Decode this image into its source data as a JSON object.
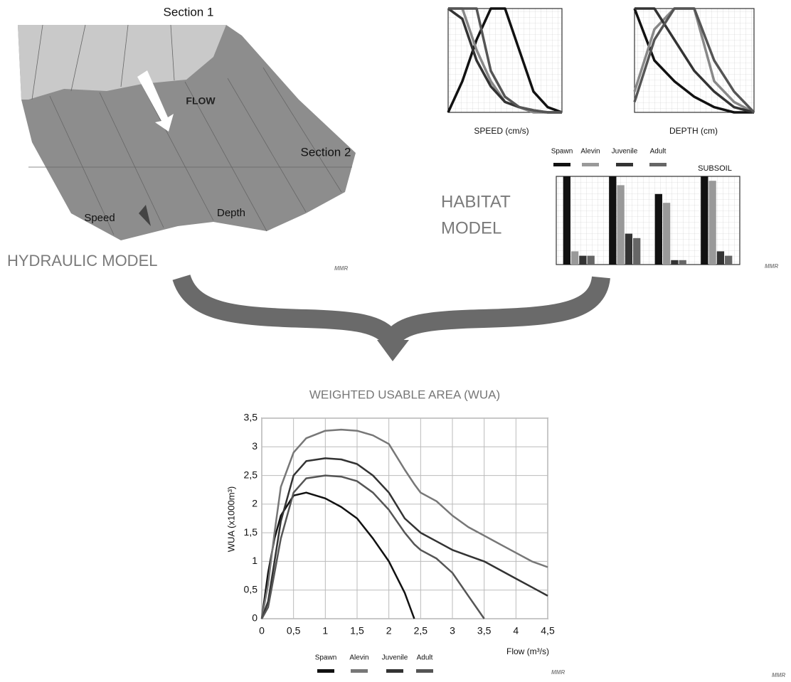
{
  "hydraulic_model": {
    "title": "HYDRAULIC MODEL",
    "section_1": "Section 1",
    "section_2": "Section 2",
    "flow": "FLOW",
    "speed": "Speed",
    "depth": "Depth",
    "credit": "MMR"
  },
  "habitat_model": {
    "title_lines": [
      "HABITAT",
      "MODEL"
    ],
    "credit": "MMR"
  },
  "wua_credit": "MMR",
  "corner_credit": "MMR",
  "chart_data": [
    {
      "type": "line",
      "xlabel": "SPEED (cm/s)",
      "x": [
        0,
        10,
        20,
        30,
        40,
        50,
        60,
        70,
        80
      ],
      "xlim": [
        0,
        80
      ],
      "ylim": [
        0,
        1
      ],
      "series": [
        {
          "color": "#111111",
          "values": [
            0,
            0.3,
            0.7,
            1,
            1,
            0.6,
            0.2,
            0.05,
            0
          ]
        },
        {
          "color": "#888888",
          "values": [
            1,
            1,
            0.6,
            0.3,
            0.1,
            0.05,
            0,
            0,
            0
          ]
        },
        {
          "color": "#333333",
          "values": [
            1,
            0.9,
            0.5,
            0.25,
            0.1,
            0.05,
            0.02,
            0,
            0
          ]
        },
        {
          "color": "#555555",
          "values": [
            1,
            1,
            1,
            0.4,
            0.15,
            0.05,
            0.02,
            0,
            0
          ]
        }
      ]
    },
    {
      "type": "line",
      "xlabel": "DEPTH (cm)",
      "x": [
        0,
        20,
        40,
        60,
        80,
        100,
        120
      ],
      "xlim": [
        0,
        120
      ],
      "ylim": [
        0,
        1
      ],
      "series": [
        {
          "color": "#111111",
          "values": [
            1,
            0.5,
            0.3,
            0.15,
            0.05,
            0,
            0
          ]
        },
        {
          "color": "#888888",
          "values": [
            0.2,
            0.8,
            1,
            1,
            0.3,
            0.1,
            0
          ]
        },
        {
          "color": "#333333",
          "values": [
            1,
            1,
            0.7,
            0.4,
            0.2,
            0.05,
            0
          ]
        },
        {
          "color": "#555555",
          "values": [
            0.1,
            0.7,
            1,
            1,
            0.5,
            0.2,
            0
          ]
        }
      ]
    },
    {
      "type": "bar",
      "title": "SUBSOIL",
      "categories": [
        null,
        null,
        null,
        null
      ],
      "ylim": [
        0,
        1
      ],
      "series": [
        {
          "name": "Spawn",
          "color": "#111111",
          "values": [
            1,
            1,
            0.8,
            1
          ]
        },
        {
          "name": "Alevin",
          "color": "#999999",
          "values": [
            0.15,
            0.9,
            0.7,
            0.95
          ]
        },
        {
          "name": "Juvenile",
          "color": "#333333",
          "values": [
            0.1,
            0.35,
            0.05,
            0.15
          ]
        },
        {
          "name": "Adult",
          "color": "#666666",
          "values": [
            0.1,
            0.3,
            0.05,
            0.1
          ]
        }
      ]
    },
    {
      "type": "line",
      "title": "WEIGHTED USABLE AREA (WUA)",
      "xlabel": "Flow (m³/s)",
      "ylabel": "WUA (x1000m³)",
      "x": [
        0,
        0.1,
        0.2,
        0.3,
        0.5,
        0.7,
        1,
        1.25,
        1.5,
        1.75,
        2,
        2.25,
        2.4,
        2.5,
        2.75,
        3,
        3.25,
        3.5,
        3.75,
        4,
        4.25,
        4.5
      ],
      "xlim": [
        0,
        4.5
      ],
      "ylim": [
        0,
        3.5
      ],
      "grid": true,
      "xticks": [
        0,
        {
          "value": 0.5,
          "label": "0,5"
        },
        1,
        {
          "value": 1.5,
          "label": "1,5"
        },
        2,
        {
          "value": 2.5,
          "label": "2,5"
        },
        3,
        {
          "value": 3.5,
          "label": "3,5"
        },
        4,
        {
          "value": 4.5,
          "label": "4,5"
        }
      ],
      "yticks": [
        0,
        {
          "value": 0.5,
          "label": "0,5"
        },
        1,
        {
          "value": 1.5,
          "label": "1,5"
        },
        2,
        {
          "value": 2.5,
          "label": "2,5"
        },
        3,
        {
          "value": 3.5,
          "label": "3,5"
        }
      ],
      "series": [
        {
          "name": "Spawn",
          "color": "#111111",
          "values": [
            0,
            0.8,
            1.4,
            1.8,
            2.15,
            2.2,
            2.1,
            1.95,
            1.75,
            1.4,
            1.0,
            0.45,
            0,
            null,
            null,
            null,
            null,
            null,
            null,
            null,
            null,
            null
          ]
        },
        {
          "name": "Alevin",
          "color": "#777777",
          "values": [
            0,
            0.6,
            1.5,
            2.3,
            2.9,
            3.15,
            3.28,
            3.3,
            3.28,
            3.2,
            3.05,
            2.6,
            2.35,
            2.2,
            2.05,
            1.8,
            1.6,
            1.45,
            1.3,
            1.15,
            1.0,
            0.9
          ]
        },
        {
          "name": "Juvenile",
          "color": "#333333",
          "values": [
            0,
            0.3,
            1.0,
            1.7,
            2.5,
            2.75,
            2.8,
            2.78,
            2.7,
            2.5,
            2.2,
            1.75,
            1.6,
            1.5,
            1.35,
            1.2,
            1.1,
            1.0,
            0.85,
            0.7,
            0.55,
            0.4
          ]
        },
        {
          "name": "Adult",
          "color": "#555555",
          "values": [
            0,
            0.2,
            0.8,
            1.4,
            2.2,
            2.45,
            2.5,
            2.48,
            2.4,
            2.2,
            1.9,
            1.5,
            1.3,
            1.2,
            1.05,
            0.8,
            0.4,
            0,
            null,
            null,
            null,
            null
          ]
        }
      ]
    }
  ]
}
